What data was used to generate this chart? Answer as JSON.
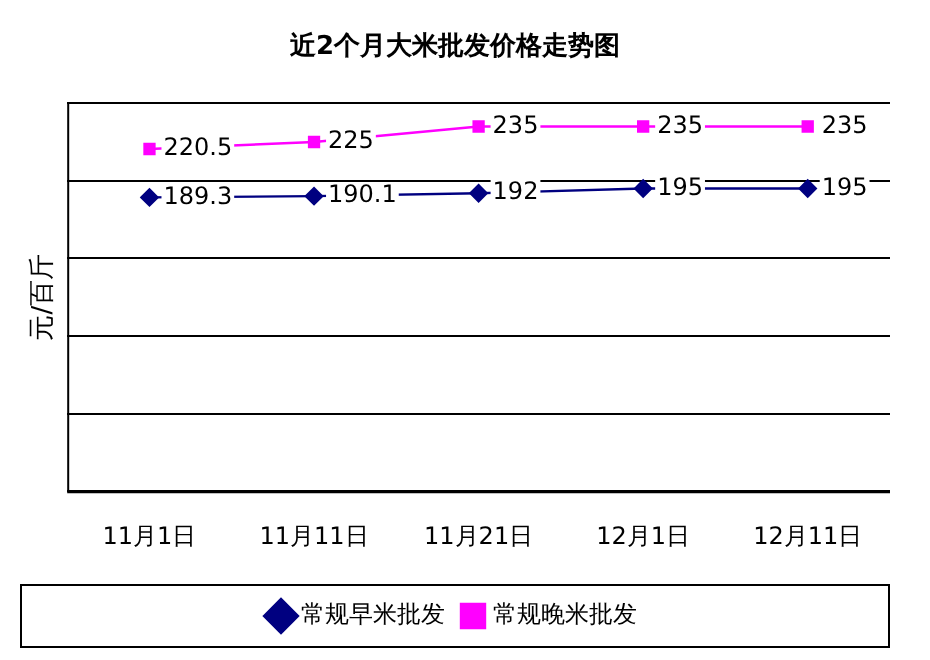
{
  "chart_data": {
    "type": "line",
    "title": "近2个月大米批发价格走势图",
    "ylabel": "元/百斤",
    "categories": [
      "11月1日",
      "11月11日",
      "11月21日",
      "12月1日",
      "12月11日"
    ],
    "series": [
      {
        "name": "常规早米批发",
        "color": "#000080",
        "marker": "diamond",
        "values": [
          189.3,
          190.1,
          192,
          195,
          195
        ]
      },
      {
        "name": "常规晚米批发",
        "color": "#ff00ff",
        "marker": "square",
        "values": [
          220.5,
          225,
          235,
          235,
          235
        ]
      }
    ],
    "ylim": [
      0,
      250
    ],
    "yticks": [
      {
        "value": 0,
        "label": null
      },
      {
        "value": 50,
        "label": null
      },
      {
        "value": 100,
        "label": null
      },
      {
        "value": 150,
        "label": null
      },
      {
        "value": 200,
        "label": null
      },
      {
        "value": 250,
        "label": null
      }
    ],
    "tick_labels": "x",
    "grid": "y",
    "legend": "bottom",
    "data_labels": true,
    "line_style": "solid"
  }
}
